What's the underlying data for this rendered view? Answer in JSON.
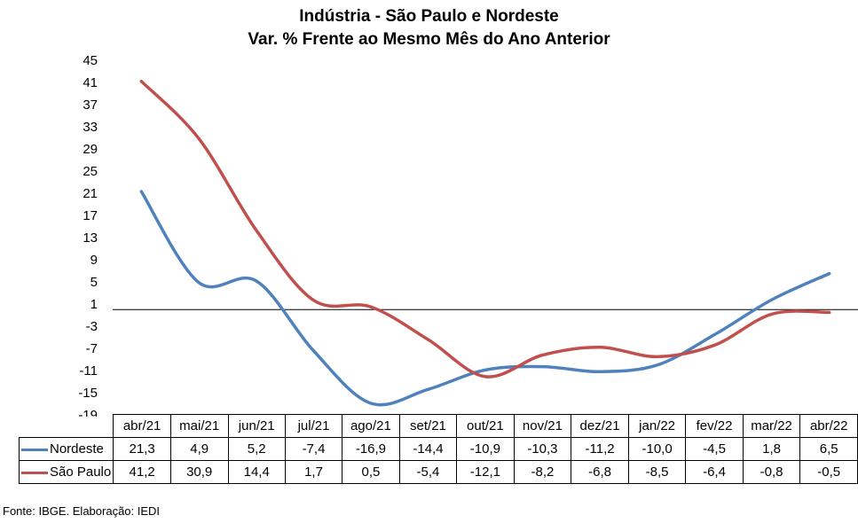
{
  "title_line1": "Indústria - São Paulo e Nordeste",
  "title_line2": "Var. % Frente ao Mesmo Mês do Ano Anterior",
  "source": "Fonte: IBGE. Elaboração: IEDI",
  "chart_data": {
    "type": "line",
    "title": "Indústria - São Paulo e Nordeste Var. % Frente ao Mesmo Mês do Ano Anterior",
    "categories": [
      "abr/21",
      "mai/21",
      "jun/21",
      "jul/21",
      "ago/21",
      "set/21",
      "out/21",
      "nov/21",
      "dez/21",
      "jan/22",
      "fev/22",
      "mar/22",
      "abr/22"
    ],
    "y_ticks": [
      "45",
      "41",
      "37",
      "33",
      "29",
      "25",
      "21",
      "17",
      "13",
      "9",
      "5",
      "1",
      "-3",
      "-7",
      "-11",
      "-15",
      "-19"
    ],
    "ylim": [
      -19,
      45
    ],
    "reference_line": 0,
    "grid": false,
    "legend": "data-table",
    "series": [
      {
        "name": "Nordeste",
        "color": "#4f81bd",
        "values": [
          21.3,
          4.9,
          5.2,
          -7.4,
          -16.9,
          -14.4,
          -10.9,
          -10.3,
          -11.2,
          -10.0,
          -4.5,
          1.8,
          6.5
        ],
        "labels": [
          "21,3",
          "4,9",
          "5,2",
          "-7,4",
          "-16,9",
          "-14,4",
          "-10,9",
          "-10,3",
          "-11,2",
          "-10,0",
          "-4,5",
          "1,8",
          "6,5"
        ]
      },
      {
        "name": "São Paulo",
        "color": "#c0504d",
        "values": [
          41.2,
          30.9,
          14.4,
          1.7,
          0.5,
          -5.4,
          -12.1,
          -8.2,
          -6.8,
          -8.5,
          -6.4,
          -0.8,
          -0.5
        ],
        "labels": [
          "41,2",
          "30,9",
          "14,4",
          "1,7",
          "0,5",
          "-5,4",
          "-12,1",
          "-8,2",
          "-6,8",
          "-8,5",
          "-6,4",
          "-0,8",
          "-0,5"
        ]
      }
    ]
  }
}
